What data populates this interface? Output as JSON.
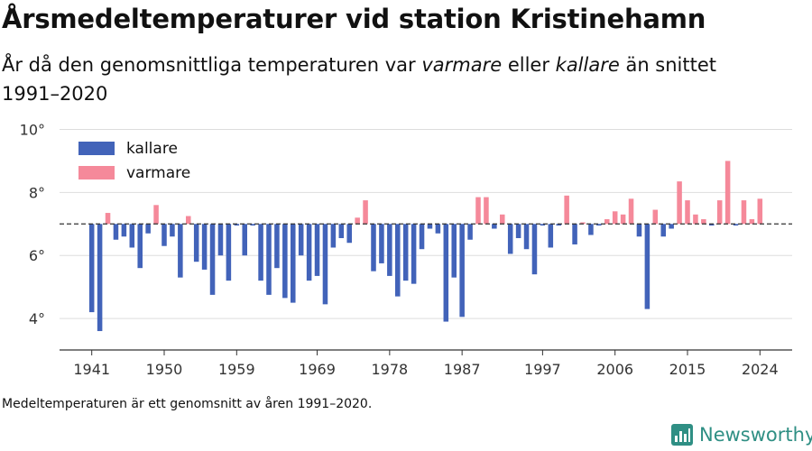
{
  "title": "Årsmedeltemperaturer vid station Kristinehamn",
  "subtitle": {
    "part1": "År då den genomsnittliga temperaturen var ",
    "warm": "varmare",
    "part2": " eller ",
    "cold": "kallare",
    "part3": " än snittet 1991–2020"
  },
  "footnote": "Medeltemperaturen är ett genomsnitt av åren 1991–2020.",
  "brand": {
    "name": "Newsworthy",
    "icon": "newsworthy-logo-icon",
    "color": "#2f8f84"
  },
  "chart_data": {
    "type": "bar",
    "baseline": 7.0,
    "ylim": [
      3.0,
      10.3
    ],
    "yticks": [
      4,
      6,
      8,
      10
    ],
    "ytick_labels": [
      "4°",
      "6°",
      "8°",
      "10°"
    ],
    "xlim": [
      1937,
      2028
    ],
    "xticks": [
      1941,
      1950,
      1959,
      1969,
      1978,
      1987,
      1997,
      2006,
      2015,
      2024
    ],
    "xtick_labels": [
      "1941",
      "1950",
      "1959",
      "1969",
      "1978",
      "1987",
      "1997",
      "2006",
      "2015",
      "2024"
    ],
    "grid": true,
    "legend_position": "top-left",
    "colors": {
      "kallare": "#4263b9",
      "varmare": "#f5899a",
      "baseline": "#333333",
      "grid": "#dddddd"
    },
    "legend": [
      {
        "name": "kallare",
        "color": "#4263b9"
      },
      {
        "name": "varmare",
        "color": "#f5899a"
      }
    ],
    "years": [
      1941,
      1942,
      1943,
      1944,
      1945,
      1946,
      1947,
      1948,
      1949,
      1950,
      1951,
      1952,
      1953,
      1954,
      1955,
      1956,
      1957,
      1958,
      1959,
      1960,
      1961,
      1962,
      1963,
      1964,
      1965,
      1966,
      1967,
      1968,
      1969,
      1970,
      1971,
      1972,
      1973,
      1974,
      1975,
      1976,
      1977,
      1978,
      1979,
      1980,
      1981,
      1982,
      1983,
      1984,
      1985,
      1986,
      1987,
      1988,
      1989,
      1990,
      1991,
      1992,
      1993,
      1994,
      1995,
      1996,
      1997,
      1998,
      1999,
      2000,
      2001,
      2002,
      2003,
      2004,
      2005,
      2006,
      2007,
      2008,
      2009,
      2010,
      2011,
      2012,
      2013,
      2014,
      2015,
      2016,
      2017,
      2018,
      2019,
      2020,
      2021,
      2022,
      2023,
      2024
    ],
    "values": [
      4.2,
      3.6,
      7.35,
      6.5,
      6.6,
      6.25,
      5.6,
      6.7,
      7.6,
      6.3,
      6.6,
      5.3,
      7.25,
      5.8,
      5.55,
      4.75,
      6.0,
      5.2,
      6.95,
      6.0,
      6.95,
      5.2,
      4.75,
      5.6,
      4.65,
      4.5,
      6.0,
      5.2,
      5.35,
      4.45,
      6.25,
      6.55,
      6.4,
      7.2,
      7.75,
      5.5,
      5.75,
      5.35,
      4.7,
      5.2,
      5.1,
      6.2,
      6.85,
      6.7,
      3.9,
      5.3,
      4.05,
      6.5,
      7.85,
      7.85,
      6.85,
      7.3,
      6.05,
      6.55,
      6.2,
      5.4,
      6.95,
      6.25,
      6.95,
      7.9,
      6.35,
      7.05,
      6.65,
      6.95,
      7.15,
      7.4,
      7.3,
      7.8,
      6.6,
      4.3,
      7.45,
      6.6,
      6.85,
      8.35,
      7.75,
      7.3,
      7.15,
      6.95,
      7.75,
      9.0,
      6.95,
      7.75,
      7.15,
      7.8
    ]
  }
}
